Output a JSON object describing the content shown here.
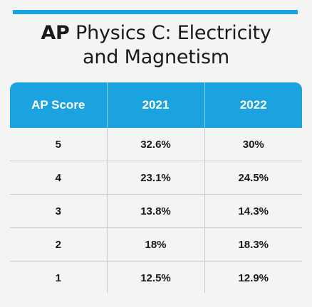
{
  "title": {
    "line1_bold": "AP",
    "line1_rest": " Physics C: Electricity",
    "line2": "and Magnetism"
  },
  "colors": {
    "accent": "#1ba3e0",
    "header_text": "#ffffff",
    "background": "#f4f4f4",
    "text": "#1a1a1a"
  },
  "chart_data": {
    "type": "table",
    "title": "AP Physics C: Electricity and Magnetism",
    "columns": [
      "AP Score",
      "2021",
      "2022"
    ],
    "rows": [
      [
        "5",
        "32.6%",
        "30%"
      ],
      [
        "4",
        "23.1%",
        "24.5%"
      ],
      [
        "3",
        "13.8%",
        "14.3%"
      ],
      [
        "2",
        "18%",
        "18.3%"
      ],
      [
        "1",
        "12.5%",
        "12.9%"
      ]
    ]
  }
}
